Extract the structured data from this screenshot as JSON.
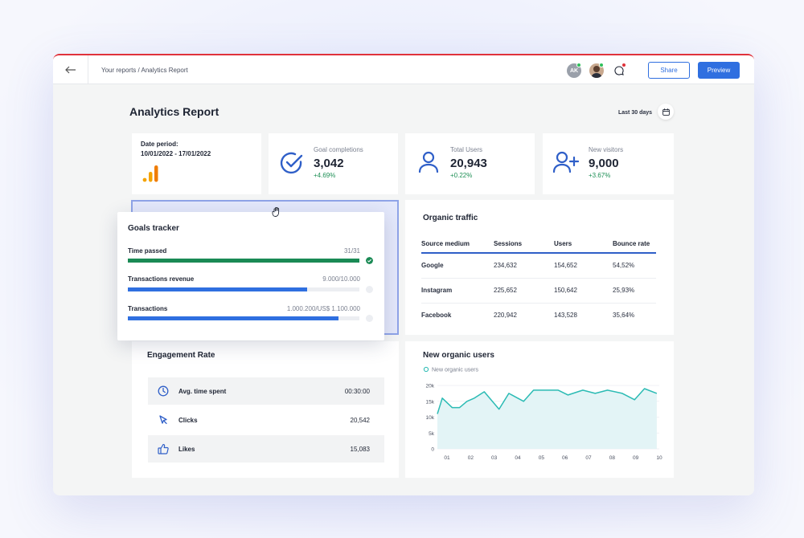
{
  "topbar": {
    "back_icon": "arrow-left-icon",
    "breadcrumb": "Your reports / Analytics Report",
    "avatar_initials": "AK",
    "share_label": "Share",
    "preview_label": "Preview",
    "colors": {
      "accent": "#2f6fe0",
      "online": "#2fbf5a",
      "notify": "#e0323b"
    }
  },
  "page": {
    "title": "Analytics Report",
    "range": "Last 30 days"
  },
  "date_card": {
    "label": "Date period:",
    "value": "10/01/2022 - 17/01/2022",
    "icon": "bar-chart-icon"
  },
  "kpis": [
    {
      "label": "Goal completions",
      "value": "3,042",
      "delta": "+4.69%",
      "icon": "check-circle-icon"
    },
    {
      "label": "Total Users",
      "value": "20,943",
      "delta": "+0.22%",
      "icon": "user-icon"
    },
    {
      "label": "New visitors",
      "value": "9,000",
      "delta": "+3.67%",
      "icon": "user-plus-icon"
    }
  ],
  "goals": {
    "title": "Goals tracker",
    "items": [
      {
        "label": "Time passed",
        "value": "31/31",
        "progress": 1.0,
        "color": "#1a8a55",
        "done": true
      },
      {
        "label": "Transactions revenue",
        "value": "9.000/10.000",
        "progress": 0.775,
        "color": "#2f6fe0",
        "done": false
      },
      {
        "label": "Transactions",
        "value": "1.000.200/US$ 1.100.000",
        "progress": 0.91,
        "color": "#2f6fe0",
        "done": false
      }
    ]
  },
  "organic_traffic": {
    "title": "Organic traffic",
    "headers": [
      "Source medium",
      "Sessions",
      "Users",
      "Bounce rate"
    ],
    "rows": [
      [
        "Google",
        "234,632",
        "154,652",
        "54,52%"
      ],
      [
        "Instagram",
        "225,652",
        "150,642",
        "25,93%"
      ],
      [
        "Facebook",
        "220,942",
        "143,528",
        "35,64%"
      ]
    ]
  },
  "engagement": {
    "title": "Engagement Rate",
    "rows": [
      {
        "label": "Avg. time spent",
        "value": "00:30:00",
        "icon": "clock-icon"
      },
      {
        "label": "Clicks",
        "value": "20,542",
        "icon": "cursor-icon"
      },
      {
        "label": "Likes",
        "value": "15,083",
        "icon": "thumbs-up-icon"
      }
    ]
  },
  "new_users": {
    "title": "New organic users"
  },
  "chart_data": {
    "type": "area",
    "title": "New organic users",
    "series": [
      {
        "name": "New organic users",
        "color": "#2bbbb4",
        "x": [
          1.0,
          1.2,
          1.6,
          1.9,
          2.2,
          2.5,
          2.9,
          3.5,
          3.9,
          4.5,
          4.9,
          5.3,
          5.9,
          6.3,
          6.9,
          7.4,
          7.9,
          8.5,
          9.0,
          9.4,
          9.9
        ],
        "y": [
          11000,
          16000,
          13000,
          13000,
          15000,
          16000,
          18000,
          12500,
          17500,
          15000,
          18500,
          18500,
          18500,
          17000,
          18500,
          17500,
          18500,
          17500,
          15500,
          19000,
          17500
        ]
      }
    ],
    "x_ticks": [
      "01",
      "02",
      "03",
      "04",
      "05",
      "06",
      "07",
      "08",
      "09",
      "10"
    ],
    "y_ticks": [
      "0",
      "5k",
      "10k",
      "15k",
      "20k"
    ],
    "xlim": [
      1,
      10
    ],
    "ylim": [
      0,
      20000
    ],
    "grid": true,
    "legend": "top-left"
  }
}
